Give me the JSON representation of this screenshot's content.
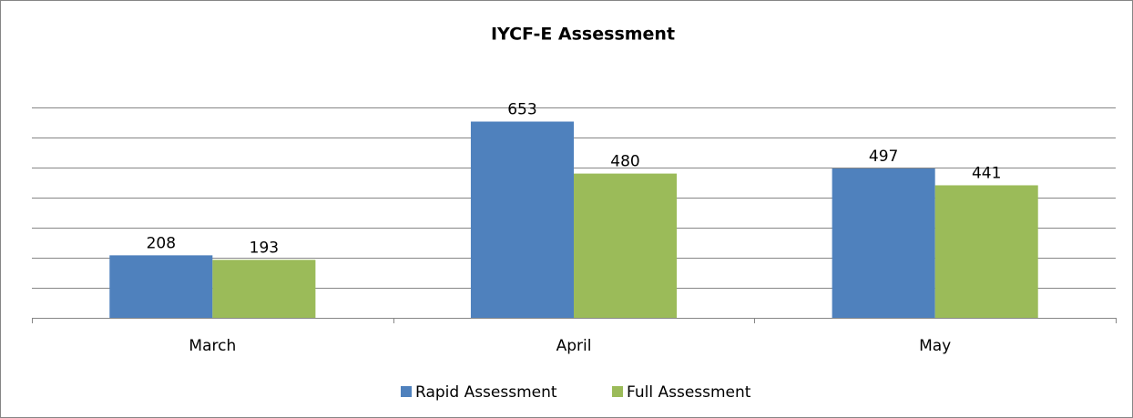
{
  "chart_data": {
    "type": "bar",
    "title": "IYCF-E Assessment",
    "categories": [
      "March",
      "April",
      "May"
    ],
    "series": [
      {
        "name": "Rapid Assessment",
        "color": "#4f81bd",
        "values": [
          208,
          653,
          497
        ]
      },
      {
        "name": "Full Assessment",
        "color": "#9bbb59",
        "values": [
          193,
          480,
          441
        ]
      }
    ],
    "ylim": [
      0,
      700
    ],
    "yticks": [
      0,
      100,
      200,
      300,
      400,
      500,
      600,
      700
    ],
    "grid": true,
    "legend": "bottom"
  }
}
